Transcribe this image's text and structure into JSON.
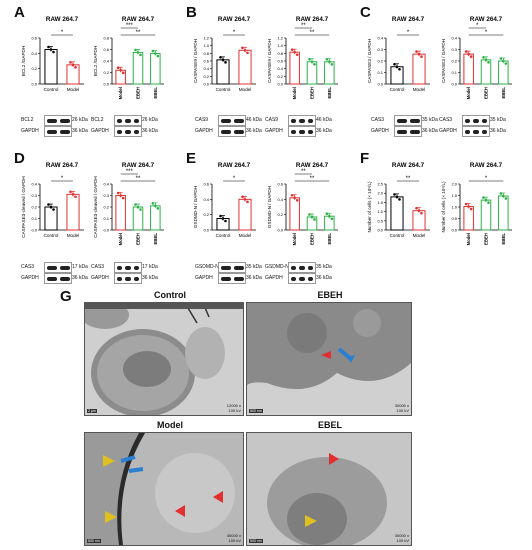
{
  "panels": {
    "A": "A",
    "B": "B",
    "C": "C",
    "D": "D",
    "E": "E",
    "F": "F",
    "G": "G"
  },
  "cell_line": "RAW 264.7",
  "groups2": [
    "Control",
    "Model"
  ],
  "groups3": [
    "Model",
    "EBEH",
    "EBEL"
  ],
  "sig": {
    "one": "*",
    "two": "**",
    "three": "***"
  },
  "colors": {
    "control": "#000000",
    "model": "#e03030",
    "ebeh": "#2db24a",
    "ebel": "#2db24a"
  },
  "chart_data": [
    {
      "panel": "A",
      "type": "bar",
      "title": "RAW 264.7",
      "ylabel": "BCL2 /GAPDH",
      "categories": [
        "Control",
        "Model"
      ],
      "values": [
        0.45,
        0.25
      ],
      "ylim": [
        0,
        0.6
      ],
      "yticks": [
        "0.0",
        "0.2",
        "0.4",
        "0.6"
      ]
    },
    {
      "panel": "A",
      "type": "bar",
      "title": "RAW 264.7",
      "ylabel": "BCL2 /GAPDH",
      "categories": [
        "Model",
        "EBEH",
        "EBEL"
      ],
      "values": [
        0.24,
        0.55,
        0.53
      ],
      "ylim": [
        0,
        0.8
      ],
      "yticks": [
        "0.0",
        "0.2",
        "0.4",
        "0.6",
        "0.8"
      ]
    },
    {
      "panel": "B",
      "type": "bar",
      "title": "RAW 264.7",
      "ylabel": "CASPASE9 / GAPDH",
      "categories": [
        "Control",
        "Model"
      ],
      "values": [
        0.63,
        0.88
      ],
      "ylim": [
        0,
        1.2
      ],
      "yticks": [
        "0.0",
        "0.2",
        "0.4",
        "0.6",
        "0.8",
        "1.0",
        "1.2"
      ]
    },
    {
      "panel": "B",
      "type": "bar",
      "title": "RAW 264.7",
      "ylabel": "CASPASE9 / GAPDH",
      "categories": [
        "Model",
        "EBEH",
        "EBEL"
      ],
      "values": [
        0.83,
        0.58,
        0.58
      ],
      "ylim": [
        0,
        1.2
      ],
      "yticks": [
        "0.0",
        "0.2",
        "0.4",
        "0.6",
        "0.8",
        "1.0",
        "1.2"
      ]
    },
    {
      "panel": "C",
      "type": "bar",
      "title": "RAW 264.7",
      "ylabel": "CASPASE3 / GAPDH",
      "categories": [
        "Control",
        "Model"
      ],
      "values": [
        0.15,
        0.26
      ],
      "ylim": [
        0,
        0.4
      ],
      "yticks": [
        "0.0",
        "0.1",
        "0.2",
        "0.3",
        "0.4"
      ]
    },
    {
      "panel": "C",
      "type": "bar",
      "title": "RAW 264.7",
      "ylabel": "CASPASE3 / GAPDH",
      "categories": [
        "Model",
        "EBEH",
        "EBEL"
      ],
      "values": [
        0.26,
        0.21,
        0.2
      ],
      "ylim": [
        0,
        0.4
      ],
      "yticks": [
        "0.0",
        "0.1",
        "0.2",
        "0.3",
        "0.4"
      ]
    },
    {
      "panel": "D",
      "type": "bar",
      "title": "RAW 264.7",
      "ylabel": "CASPASE3-cleaved / GAPDH",
      "categories": [
        "Control",
        "Model"
      ],
      "values": [
        0.2,
        0.31
      ],
      "ylim": [
        0,
        0.4
      ],
      "yticks": [
        "0.0",
        "0.1",
        "0.2",
        "0.3",
        "0.4"
      ]
    },
    {
      "panel": "D",
      "type": "bar",
      "title": "RAW 264.7",
      "ylabel": "CASPASE3-cleaved / GAPDH",
      "categories": [
        "Model",
        "EBEH",
        "EBEL"
      ],
      "values": [
        0.3,
        0.2,
        0.21
      ],
      "ylim": [
        0,
        0.4
      ],
      "yticks": [
        "0.0",
        "0.1",
        "0.2",
        "0.3",
        "0.4"
      ]
    },
    {
      "panel": "E",
      "type": "bar",
      "title": "RAW 264.7",
      "ylabel": "GSDMD-N / GAPDH",
      "categories": [
        "Control",
        "Model"
      ],
      "values": [
        0.15,
        0.4
      ],
      "ylim": [
        0,
        0.6
      ],
      "yticks": [
        "0.0",
        "0.2",
        "0.4",
        "0.6"
      ]
    },
    {
      "panel": "E",
      "type": "bar",
      "title": "RAW 264.7",
      "ylabel": "GSDMD-N / GAPDH",
      "categories": [
        "Model",
        "EBEH",
        "EBEL"
      ],
      "values": [
        0.42,
        0.17,
        0.18
      ],
      "ylim": [
        0,
        0.6
      ],
      "yticks": [
        "0.0",
        "0.2",
        "0.4",
        "0.6"
      ]
    },
    {
      "panel": "F",
      "type": "bar",
      "title": "RAW 264.7",
      "ylabel": "Number of cells (× 10⁶/L)",
      "categories": [
        "Control",
        "Model"
      ],
      "values": [
        1.8,
        1.05
      ],
      "ylim": [
        0,
        2.5
      ],
      "yticks": [
        "0.0",
        "0.5",
        "1.0",
        "1.5",
        "2.0",
        "2.5"
      ]
    },
    {
      "panel": "F",
      "type": "bar",
      "title": "RAW 264.7",
      "ylabel": "Number of cells (× 10⁶/L)",
      "categories": [
        "Model",
        "EBEH",
        "EBEL"
      ],
      "values": [
        1.02,
        1.3,
        1.48
      ],
      "ylim": [
        0,
        2.0
      ],
      "yticks": [
        "0.0",
        "0.5",
        "1.0",
        "1.5",
        "2.0"
      ]
    }
  ],
  "blots": {
    "A": {
      "left": [
        "BCL2",
        "GAPDH"
      ],
      "left_kda": [
        "26 kDa",
        "36 kDa"
      ],
      "right": [
        "BCL2",
        "GAPDH"
      ],
      "right_kda": [
        "26 kDa",
        "36 kDa"
      ]
    },
    "B": {
      "left": [
        "CAS9",
        "GAPDH"
      ],
      "left_kda": [
        "46 kDa",
        "36 kDa"
      ],
      "right": [
        "CAS9",
        "GAPDH"
      ],
      "right_kda": [
        "46 kDa",
        "36 kDa"
      ]
    },
    "C": {
      "left": [
        "CAS3",
        "GAPDH"
      ],
      "left_kda": [
        "35 kDa",
        "36 kDa"
      ],
      "right": [
        "CAS3",
        "GAPDH"
      ],
      "right_kda": [
        "35 kDa",
        "36 kDa"
      ]
    },
    "D": {
      "left": [
        "CAS3",
        "GAPDH"
      ],
      "left_kda": [
        "17 kDa",
        "36 kDa"
      ],
      "right": [
        "CAS3",
        "GAPDH"
      ],
      "right_kda": [
        "17 kDa",
        "36 kDa"
      ]
    },
    "E": {
      "left": [
        "GSDMD-N",
        "GAPDH"
      ],
      "left_kda": [
        "35 kDa",
        "36 kDa"
      ],
      "right": [
        "GSDMD-N",
        "GAPDH"
      ],
      "right_kda": [
        "35 kDa",
        "36 kDa"
      ]
    }
  },
  "em": {
    "control": {
      "title": "Control",
      "mag": "12000 x",
      "kv": "100 kV",
      "scale": "2 µm"
    },
    "ebeh": {
      "title": "EBEH",
      "mag": "30000 x",
      "kv": "100 kV",
      "scale": "500 nm"
    },
    "model": {
      "title": "Model",
      "mag": "40000 x",
      "kv": "100 kV",
      "scale": "500 nm"
    },
    "ebel": {
      "title": "EBEL",
      "mag": "30000 x",
      "kv": "100 kV",
      "scale": "500 nm"
    }
  }
}
